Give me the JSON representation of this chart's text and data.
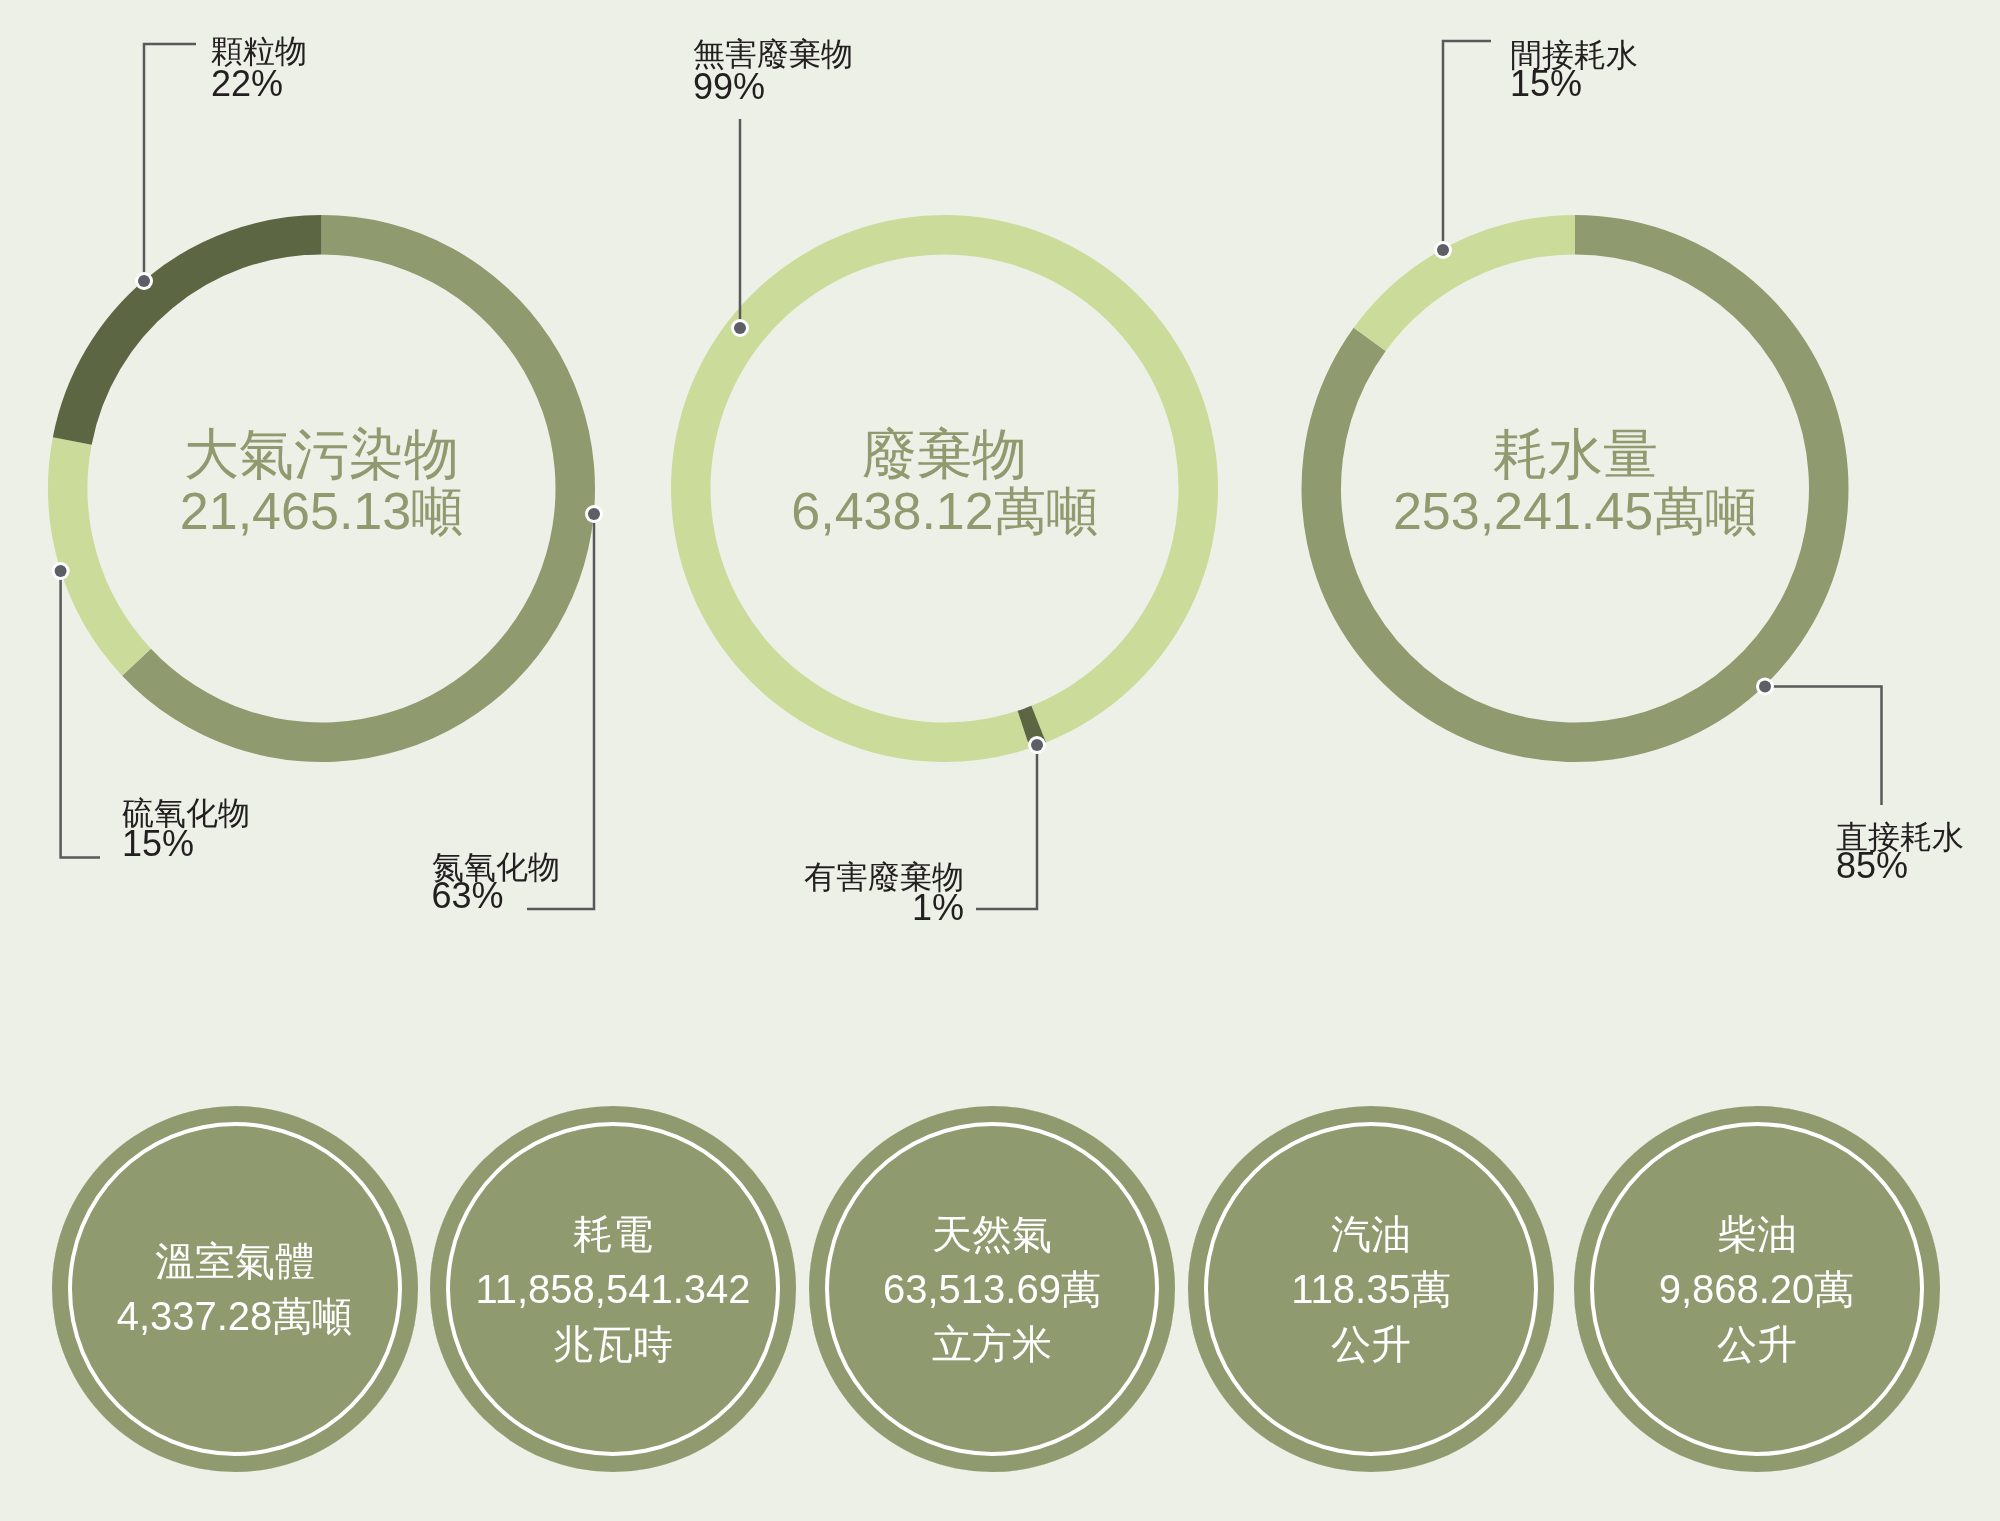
{
  "chart_data": [
    {
      "type": "donut",
      "title": "大氣污染物",
      "subtitle": "21,465.13噸",
      "categories": [
        "氮氧化物",
        "硫氧化物",
        "顆粒物"
      ],
      "values": [
        63,
        15,
        22
      ],
      "colors": [
        "#8f9a6f",
        "#cbdb9a",
        "#5c6643"
      ],
      "value_labels": [
        "63%",
        "15%",
        "22%"
      ]
    },
    {
      "type": "donut",
      "title": "廢棄物",
      "subtitle": "6,438.12萬噸",
      "categories": [
        "無害廢棄物",
        "有害廢棄物"
      ],
      "values": [
        99,
        1
      ],
      "colors": [
        "#cbdb9a",
        "#5c6643"
      ],
      "value_labels": [
        "99%",
        "1%"
      ]
    },
    {
      "type": "donut",
      "title": "耗水量",
      "subtitle": "253,241.45萬噸",
      "categories": [
        "直接耗水",
        "間接耗水"
      ],
      "values": [
        85,
        15
      ],
      "colors": [
        "#8f9a6f",
        "#cbdb9a"
      ],
      "value_labels": [
        "85%",
        "15%"
      ]
    },
    {
      "type": "other",
      "title": "溫室氣體",
      "annotations": [
        "4,337.28萬噸"
      ]
    },
    {
      "type": "other",
      "title": "耗電",
      "annotations": [
        "11,858,541.342",
        "兆瓦時"
      ]
    },
    {
      "type": "other",
      "title": "天然氣",
      "annotations": [
        "63,513.69萬",
        "立方米"
      ]
    },
    {
      "type": "other",
      "title": "汽油",
      "annotations": [
        "118.35萬",
        "公升"
      ]
    },
    {
      "type": "other",
      "title": "柴油",
      "annotations": [
        "9,868.20萬",
        "公升"
      ]
    }
  ]
}
